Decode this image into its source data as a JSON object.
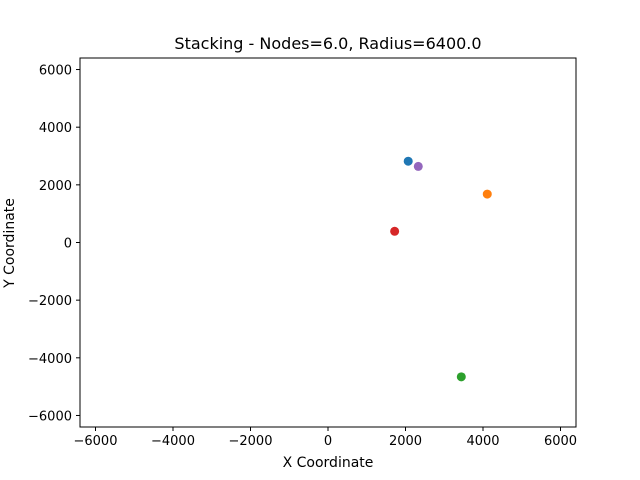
{
  "chart_data": {
    "type": "scatter",
    "title": "Stacking - Nodes=6.0, Radius=6400.0",
    "xlabel": "X Coordinate",
    "ylabel": "Y Coordinate",
    "xlim": [
      -6400,
      6400
    ],
    "ylim": [
      -6400,
      6400
    ],
    "xticks": [
      -6000,
      -4000,
      -2000,
      0,
      2000,
      4000,
      6000
    ],
    "yticks": [
      -6000,
      -4000,
      -2000,
      0,
      2000,
      4000,
      6000
    ],
    "xtick_labels": [
      "−6000",
      "−4000",
      "−2000",
      "0",
      "2000",
      "4000",
      "6000"
    ],
    "ytick_labels": [
      "−6000",
      "−4000",
      "−2000",
      "0",
      "2000",
      "4000",
      "6000"
    ],
    "grid": false,
    "points": [
      {
        "x": 2070,
        "y": 2820,
        "color": "#1f77b4"
      },
      {
        "x": 4110,
        "y": 1680,
        "color": "#ff7f0e"
      },
      {
        "x": 3440,
        "y": -4660,
        "color": "#2ca02c"
      },
      {
        "x": 1720,
        "y": 390,
        "color": "#d62728"
      },
      {
        "x": 2330,
        "y": 2640,
        "color": "#9467bd"
      }
    ]
  }
}
